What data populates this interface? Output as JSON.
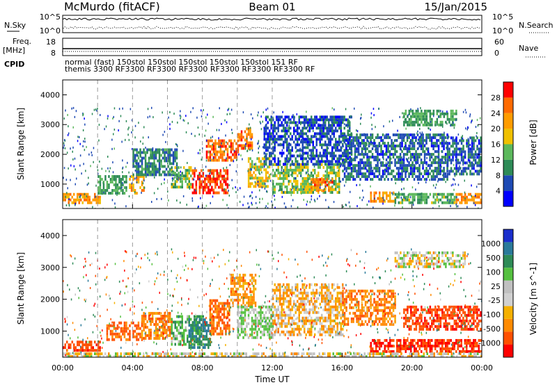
{
  "header": {
    "station": "McMurdo (fitACF)",
    "beam": "Beam 01",
    "date": "15/Jan/2015"
  },
  "top_panels": {
    "nsky_label": "N.Sky",
    "nsky_ticks": [
      "10^5",
      "10^0"
    ],
    "nsearch_label": "N.Search",
    "nsearch_ticks": [
      "10^5",
      "10^0"
    ],
    "freq_label": [
      "Freq.",
      "[MHz]"
    ],
    "freq_ticks": [
      "18",
      "8"
    ],
    "nave_label": "Nave",
    "nave_ticks": [
      "60",
      "0"
    ],
    "cpid_label": "CPID",
    "cpid_lines": {
      "line1": "normal  (fast) 150stol 150stol 150stol 150stol 150stol 151 RF",
      "line2": "themis  3300 RF3300 RF3300 RF3300 RF3300 RF3300 RF3300 RF"
    }
  },
  "colors": {
    "power_scale": [
      "#0000ff",
      "#1e4ab4",
      "#2e8b57",
      "#5cb85c",
      "#f0c000",
      "#ff9c00",
      "#ff6a00",
      "#ff0000"
    ],
    "velocity_scale": [
      "#1a2ecc",
      "#2a7a9a",
      "#2e8b57",
      "#55c040",
      "#c0c0c0",
      "#d0d0d0",
      "#f5b000",
      "#ff8a00",
      "#ff5000",
      "#ff0000"
    ]
  },
  "chart_data": [
    {
      "type": "heatmap",
      "title": "",
      "quantity": "Power",
      "ylabel": "Slant Range [km]",
      "xlabel": "",
      "ylim": [
        180,
        4500
      ],
      "xlim": [
        "00:00",
        "24:00"
      ],
      "yticks": [
        "1000",
        "2000",
        "3000",
        "4000"
      ],
      "colorbar": {
        "label": "Power [dB]",
        "ticks": [
          "4",
          "8",
          "12",
          "16",
          "20",
          "24",
          "28"
        ],
        "range": [
          0,
          32
        ]
      },
      "regions": [
        {
          "t": [
            0.0,
            2.1
          ],
          "r": [
            380,
            700
          ],
          "dB": 22
        },
        {
          "t": [
            2.0,
            3.6
          ],
          "r": [
            700,
            1300
          ],
          "dB": 12
        },
        {
          "t": [
            3.8,
            4.6
          ],
          "r": [
            700,
            1300
          ],
          "dB": 22
        },
        {
          "t": [
            4.0,
            6.5
          ],
          "r": [
            1300,
            2200
          ],
          "dB": 9
        },
        {
          "t": [
            6.2,
            7.3
          ],
          "r": [
            900,
            1600
          ],
          "dB": 14
        },
        {
          "t": [
            7.4,
            9.4
          ],
          "r": [
            700,
            1500
          ],
          "dB": 28
        },
        {
          "t": [
            8.2,
            10.0
          ],
          "r": [
            1800,
            2500
          ],
          "dB": 26
        },
        {
          "t": [
            10.0,
            10.8
          ],
          "r": [
            2200,
            2900
          ],
          "dB": 25
        },
        {
          "t": [
            10.6,
            11.8
          ],
          "r": [
            900,
            1900
          ],
          "dB": 18
        },
        {
          "t": [
            12.0,
            15.8
          ],
          "r": [
            700,
            1700
          ],
          "dB": 15
        },
        {
          "t": [
            14.2,
            15.4
          ],
          "r": [
            800,
            1200
          ],
          "dB": 25
        },
        {
          "t": [
            11.5,
            16.5
          ],
          "r": [
            1700,
            3300
          ],
          "dB": 6
        },
        {
          "t": [
            16.0,
            22.0
          ],
          "r": [
            1200,
            2700
          ],
          "dB": 7
        },
        {
          "t": [
            17.6,
            19.0
          ],
          "r": [
            400,
            750
          ],
          "dB": 22
        },
        {
          "t": [
            19.0,
            22.5
          ],
          "r": [
            380,
            700
          ],
          "dB": 13
        },
        {
          "t": [
            22.5,
            24.0
          ],
          "r": [
            380,
            700
          ],
          "dB": 24
        },
        {
          "t": [
            22.0,
            24.0
          ],
          "r": [
            1300,
            2600
          ],
          "dB": 7
        },
        {
          "t": [
            19.5,
            22.5
          ],
          "r": [
            3000,
            3500
          ],
          "dB": 12
        }
      ]
    },
    {
      "type": "heatmap",
      "title": "",
      "quantity": "Velocity",
      "ylabel": "Slant Range [km]",
      "xlabel": "Time UT",
      "ylim": [
        180,
        4500
      ],
      "xlim": [
        "00:00",
        "24:00"
      ],
      "xticks": [
        "00:00",
        "04:00",
        "08:00",
        "12:00",
        "16:00",
        "20:00",
        "00:00"
      ],
      "yticks": [
        "1000",
        "2000",
        "3000",
        "4000"
      ],
      "colorbar": {
        "label": "Velocity [m s^-1]",
        "ticks": [
          "1000",
          "500",
          "100",
          "25",
          "-25",
          "-100",
          "-500",
          "-1000"
        ],
        "range": [
          -1000,
          1000
        ]
      },
      "regions": [
        {
          "t": [
            0.0,
            2.1
          ],
          "r": [
            380,
            700
          ],
          "v": -400
        },
        {
          "t": [
            2.5,
            4.5
          ],
          "r": [
            700,
            1300
          ],
          "v": -300
        },
        {
          "t": [
            4.5,
            6.2
          ],
          "r": [
            800,
            1600
          ],
          "v": -200
        },
        {
          "t": [
            6.2,
            8.0
          ],
          "r": [
            600,
            1500
          ],
          "v": 200
        },
        {
          "t": [
            7.2,
            8.4
          ],
          "r": [
            500,
            1400
          ],
          "v": 500
        },
        {
          "t": [
            8.4,
            9.5
          ],
          "r": [
            900,
            2000
          ],
          "v": -250
        },
        {
          "t": [
            9.6,
            11.0
          ],
          "r": [
            1800,
            2800
          ],
          "v": -150
        },
        {
          "t": [
            10.0,
            12.0
          ],
          "r": [
            800,
            1800
          ],
          "v": 120
        },
        {
          "t": [
            12.0,
            16.0
          ],
          "r": [
            900,
            2500
          ],
          "v": -60
        },
        {
          "t": [
            16.0,
            19.0
          ],
          "r": [
            1200,
            2300
          ],
          "v": -200
        },
        {
          "t": [
            17.6,
            24.0
          ],
          "r": [
            400,
            750
          ],
          "v": -500
        },
        {
          "t": [
            19.5,
            24.0
          ],
          "r": [
            1100,
            1800
          ],
          "v": -450
        },
        {
          "t": [
            19.0,
            23.0
          ],
          "r": [
            3000,
            3500
          ],
          "v": 20
        },
        {
          "t": [
            0.0,
            24.0
          ],
          "r": [
            180,
            330
          ],
          "v": 0
        }
      ]
    }
  ]
}
